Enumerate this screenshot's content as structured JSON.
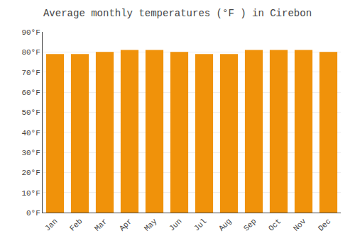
{
  "chart_data": {
    "type": "bar",
    "title": "Average monthly temperatures (°F ) in Cirebon",
    "categories": [
      "Jan",
      "Feb",
      "Mar",
      "Apr",
      "May",
      "Jun",
      "Jul",
      "Aug",
      "Sep",
      "Oct",
      "Nov",
      "Dec"
    ],
    "values": [
      79,
      79,
      80,
      81,
      81,
      80,
      79,
      79,
      81,
      81,
      81,
      80
    ],
    "color": "#F0920A",
    "ylim": [
      0,
      90
    ],
    "yticks": [
      {
        "value": 0,
        "label": "0°F"
      },
      {
        "value": 10,
        "label": "10°F"
      },
      {
        "value": 20,
        "label": "20°F"
      },
      {
        "value": 30,
        "label": "30°F"
      },
      {
        "value": 40,
        "label": "40°F"
      },
      {
        "value": 50,
        "label": "50°F"
      },
      {
        "value": 60,
        "label": "60°F"
      },
      {
        "value": 70,
        "label": "70°F"
      },
      {
        "value": 80,
        "label": "80°F"
      },
      {
        "value": 90,
        "label": "90°F"
      }
    ],
    "grid": true
  }
}
